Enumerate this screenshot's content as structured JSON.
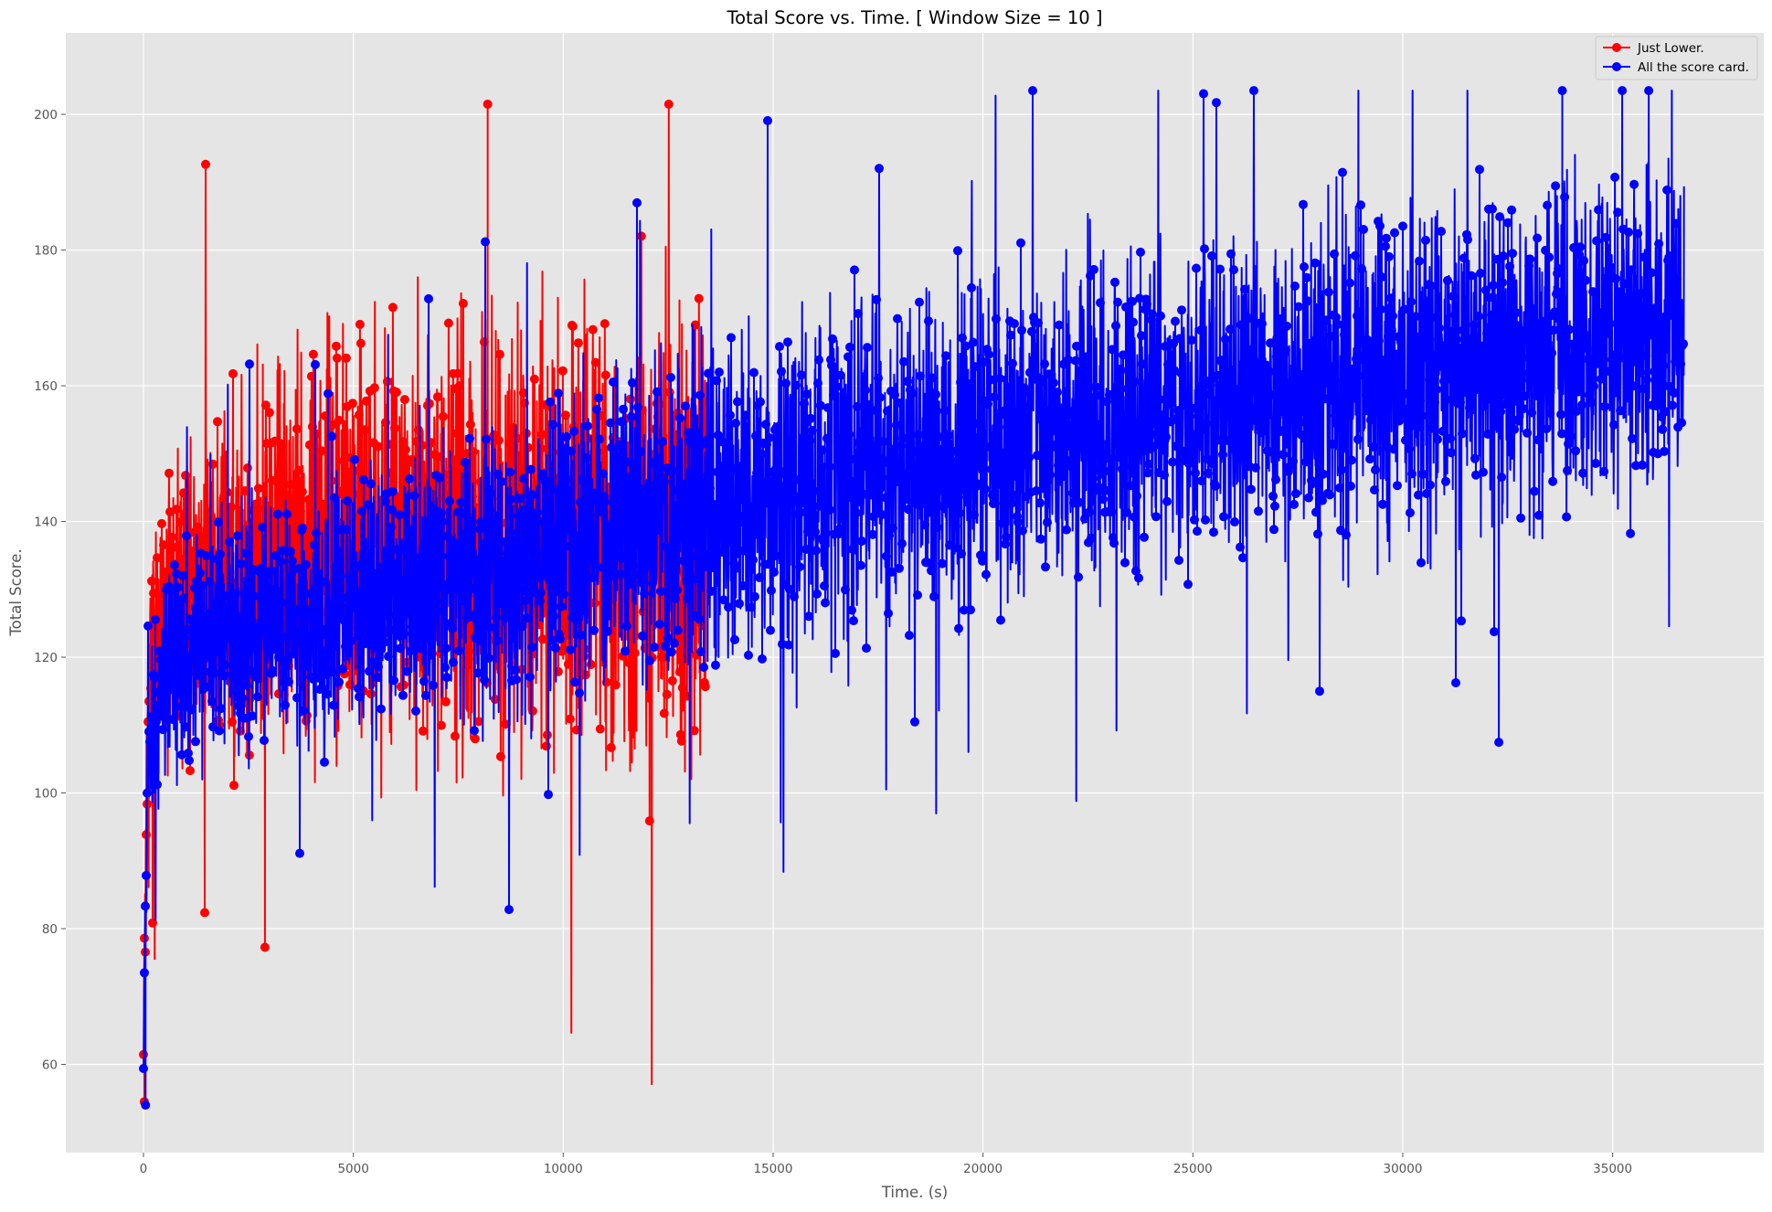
{
  "chart_data": {
    "type": "line",
    "title": "Total Score vs. Time. [ Window Size = 10 ]",
    "xlabel": "Time. (s)",
    "ylabel": "Total Score.",
    "xlim": [
      -1850,
      38600
    ],
    "ylim": [
      47,
      212
    ],
    "xticks": [
      0,
      5000,
      10000,
      15000,
      20000,
      25000,
      30000,
      35000
    ],
    "xtick_labels": [
      "0",
      "5000",
      "10000",
      "15000",
      "20000",
      "25000",
      "30000",
      "35000"
    ],
    "yticks": [
      60,
      80,
      100,
      120,
      140,
      160,
      180,
      200
    ],
    "ytick_labels": [
      "60",
      "80",
      "100",
      "120",
      "140",
      "160",
      "180",
      "200"
    ],
    "grid": true,
    "legend_position": "top-right",
    "series": [
      {
        "name": "Just Lower.",
        "color": "#ff0000",
        "marker": "o",
        "x_end": 13400,
        "trend": {
          "x": [
            0,
            100,
            300,
            700,
            1500,
            3000,
            5000,
            7000,
            9000,
            11000,
            13400
          ],
          "center": [
            60,
            112,
            122,
            127,
            132,
            135,
            136,
            137,
            138,
            137,
            138
          ],
          "spread": [
            8,
            22,
            28,
            32,
            36,
            42,
            44,
            45,
            47,
            48,
            50
          ]
        },
        "extremes": {
          "max": 201.5,
          "max_x": 8200,
          "min": 54.5,
          "min_x": 20
        }
      },
      {
        "name": "All the score card.",
        "color": "#0000ff",
        "marker": "o",
        "x_end": 36700,
        "trend": {
          "x": [
            0,
            100,
            300,
            700,
            1500,
            3000,
            5000,
            7500,
            10000,
            13000,
            16000,
            20000,
            25000,
            30000,
            36700
          ],
          "center": [
            60,
            106,
            114,
            118,
            122,
            125,
            128,
            132,
            136,
            141,
            146,
            152,
            157,
            162,
            168
          ],
          "spread": [
            6,
            16,
            20,
            22,
            24,
            26,
            28,
            30,
            32,
            33,
            34,
            34,
            34,
            34,
            34
          ]
        },
        "extremes": {
          "max": 203.5,
          "max_x": 33800,
          "min": 54,
          "min_x": 50
        }
      }
    ]
  }
}
